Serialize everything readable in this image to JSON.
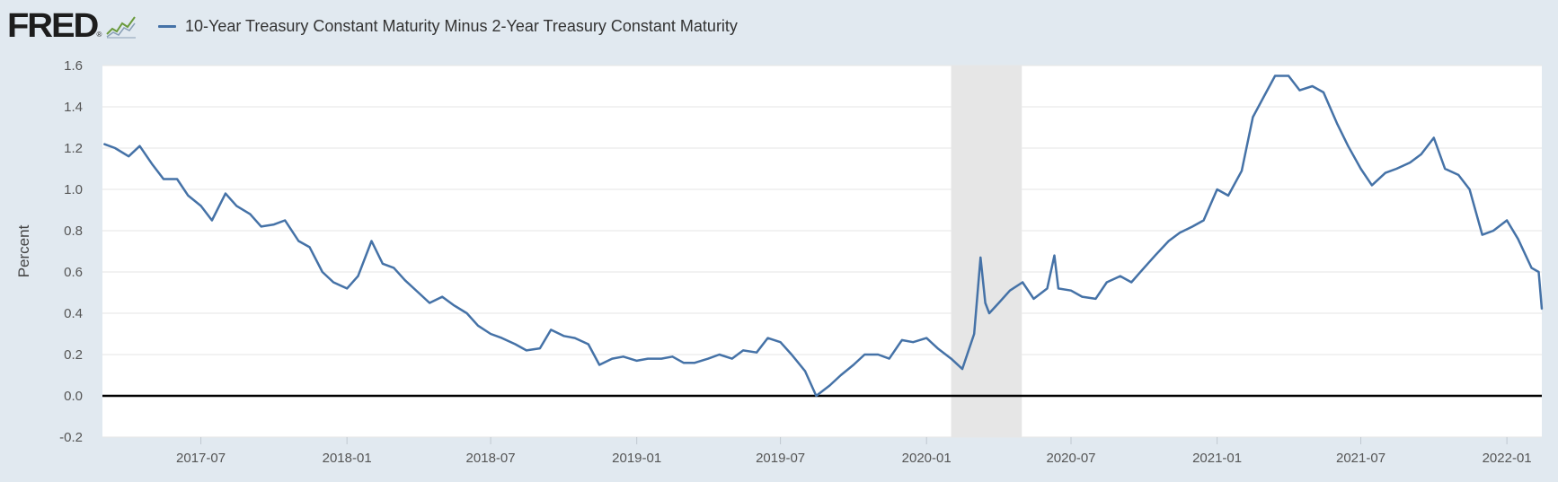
{
  "header": {
    "logo_text": "FRED",
    "logo_registered": "®",
    "chart_icon": "line-chart-icon"
  },
  "legend": {
    "series_label": "10-Year Treasury Constant Maturity Minus 2-Year Treasury Constant Maturity",
    "series_color": "#4572a7"
  },
  "colors": {
    "background": "#e1e9f0",
    "plot_background": "#ffffff",
    "line": "#4572a7",
    "recession_band": "#e6e6e6",
    "zero_line": "#000000",
    "grid": "#e6e6e6"
  },
  "chart_data": {
    "type": "line",
    "title": "",
    "xlabel": "",
    "ylabel": "Percent",
    "ylim": [
      -0.2,
      1.6
    ],
    "xlim": [
      "2017-02-27",
      "2022-02-14"
    ],
    "yticks": [
      "-0.2",
      "0.0",
      "0.2",
      "0.4",
      "0.6",
      "0.8",
      "1.0",
      "1.2",
      "1.4",
      "1.6"
    ],
    "xticks": [
      {
        "date": "2017-07-01",
        "label": "2017-07"
      },
      {
        "date": "2018-01-01",
        "label": "2018-01"
      },
      {
        "date": "2018-07-01",
        "label": "2018-07"
      },
      {
        "date": "2019-01-01",
        "label": "2019-01"
      },
      {
        "date": "2019-07-01",
        "label": "2019-07"
      },
      {
        "date": "2020-01-01",
        "label": "2020-01"
      },
      {
        "date": "2020-07-01",
        "label": "2020-07"
      },
      {
        "date": "2021-01-01",
        "label": "2021-01"
      },
      {
        "date": "2021-07-01",
        "label": "2021-07"
      },
      {
        "date": "2022-01-01",
        "label": "2022-01"
      }
    ],
    "grid": true,
    "reference_line": 0.0,
    "recession": {
      "start": "2020-02-01",
      "end": "2020-04-30"
    },
    "series": [
      {
        "name": "10-Year Treasury Constant Maturity Minus 2-Year Treasury Constant Maturity",
        "x": [
          "2017-03-01",
          "2017-03-15",
          "2017-04-01",
          "2017-04-15",
          "2017-05-01",
          "2017-05-15",
          "2017-06-01",
          "2017-06-15",
          "2017-07-01",
          "2017-07-15",
          "2017-08-01",
          "2017-08-15",
          "2017-09-01",
          "2017-09-15",
          "2017-10-01",
          "2017-10-15",
          "2017-11-01",
          "2017-11-15",
          "2017-12-01",
          "2017-12-15",
          "2018-01-01",
          "2018-01-15",
          "2018-02-01",
          "2018-02-15",
          "2018-03-01",
          "2018-03-15",
          "2018-04-01",
          "2018-04-15",
          "2018-05-01",
          "2018-05-15",
          "2018-06-01",
          "2018-06-15",
          "2018-07-01",
          "2018-07-15",
          "2018-08-01",
          "2018-08-15",
          "2018-09-01",
          "2018-09-15",
          "2018-10-01",
          "2018-10-15",
          "2018-11-01",
          "2018-11-15",
          "2018-12-01",
          "2018-12-15",
          "2019-01-01",
          "2019-01-15",
          "2019-02-01",
          "2019-02-15",
          "2019-03-01",
          "2019-03-15",
          "2019-04-01",
          "2019-04-15",
          "2019-05-01",
          "2019-05-15",
          "2019-06-01",
          "2019-06-15",
          "2019-07-01",
          "2019-07-15",
          "2019-08-01",
          "2019-08-15",
          "2019-09-01",
          "2019-09-15",
          "2019-10-01",
          "2019-10-15",
          "2019-11-01",
          "2019-11-15",
          "2019-12-01",
          "2019-12-15",
          "2020-01-01",
          "2020-01-15",
          "2020-02-01",
          "2020-02-15",
          "2020-03-01",
          "2020-03-09",
          "2020-03-15",
          "2020-03-20",
          "2020-04-01",
          "2020-04-15",
          "2020-05-01",
          "2020-05-15",
          "2020-06-01",
          "2020-06-10",
          "2020-06-15",
          "2020-07-01",
          "2020-07-15",
          "2020-08-01",
          "2020-08-15",
          "2020-09-01",
          "2020-09-15",
          "2020-10-01",
          "2020-10-15",
          "2020-11-01",
          "2020-11-15",
          "2020-12-01",
          "2020-12-15",
          "2021-01-01",
          "2021-01-15",
          "2021-02-01",
          "2021-02-15",
          "2021-03-01",
          "2021-03-15",
          "2021-04-01",
          "2021-04-15",
          "2021-05-01",
          "2021-05-15",
          "2021-06-01",
          "2021-06-15",
          "2021-07-01",
          "2021-07-15",
          "2021-08-01",
          "2021-08-15",
          "2021-09-01",
          "2021-09-15",
          "2021-10-01",
          "2021-10-15",
          "2021-11-01",
          "2021-11-15",
          "2021-12-01",
          "2021-12-15",
          "2022-01-01",
          "2022-01-15",
          "2022-02-01",
          "2022-02-10",
          "2022-02-14"
        ],
        "y": [
          1.22,
          1.2,
          1.16,
          1.21,
          1.12,
          1.05,
          1.05,
          0.97,
          0.92,
          0.85,
          0.98,
          0.92,
          0.88,
          0.82,
          0.83,
          0.85,
          0.75,
          0.72,
          0.6,
          0.55,
          0.52,
          0.58,
          0.75,
          0.64,
          0.62,
          0.56,
          0.5,
          0.45,
          0.48,
          0.44,
          0.4,
          0.34,
          0.3,
          0.28,
          0.25,
          0.22,
          0.23,
          0.32,
          0.29,
          0.28,
          0.25,
          0.15,
          0.18,
          0.19,
          0.17,
          0.18,
          0.18,
          0.19,
          0.16,
          0.16,
          0.18,
          0.2,
          0.18,
          0.22,
          0.21,
          0.28,
          0.26,
          0.2,
          0.12,
          0.0,
          0.05,
          0.1,
          0.15,
          0.2,
          0.2,
          0.18,
          0.27,
          0.26,
          0.28,
          0.23,
          0.18,
          0.13,
          0.3,
          0.67,
          0.45,
          0.4,
          0.45,
          0.51,
          0.55,
          0.47,
          0.52,
          0.68,
          0.52,
          0.51,
          0.48,
          0.47,
          0.55,
          0.58,
          0.55,
          0.62,
          0.68,
          0.75,
          0.79,
          0.82,
          0.85,
          1.0,
          0.97,
          1.09,
          1.35,
          1.45,
          1.55,
          1.55,
          1.48,
          1.5,
          1.47,
          1.32,
          1.21,
          1.1,
          1.02,
          1.08,
          1.1,
          1.13,
          1.17,
          1.25,
          1.1,
          1.07,
          1.0,
          0.78,
          0.8,
          0.85,
          0.76,
          0.62,
          0.6,
          0.42
        ]
      }
    ]
  }
}
